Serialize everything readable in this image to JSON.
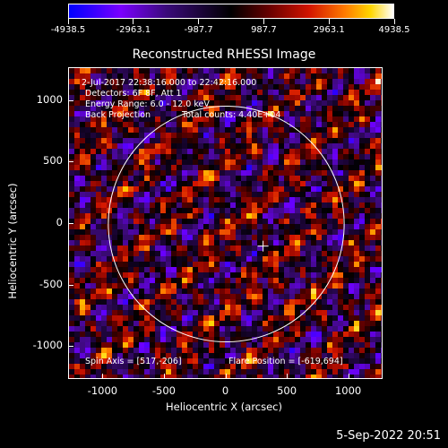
{
  "window": {
    "plot_title": "Reconstructed RHESSI Image",
    "footer_date": "5-Sep-2022 20:51"
  },
  "colorbar": {
    "labels": [
      "-4938.5",
      "-2963.1",
      "-987.7",
      "987.7",
      "2963.1",
      "4938.5"
    ],
    "colors": [
      "#0000ff",
      "#7a00ff",
      "#000000",
      "#d21400",
      "#ff7a00",
      "#ffd600",
      "#ffffff"
    ]
  },
  "annotations": {
    "time_range": "2-Jul-2017 22:38:16.000 to 22:42:16.000",
    "detectors": "Detectors: 6F 8F, Att 1",
    "energy_range": "Energy Range: 6.0 - 12.0 keV",
    "method": "Back Projection",
    "total_counts": "Total counts: 4.40E+04",
    "spin_axis": "Spin Axis = [517,-206]",
    "flare_position": "Flare Position = [-619,694]"
  },
  "axes": {
    "xlabel": "Heliocentric X (arcsec)",
    "ylabel": "Heliocentric Y (arcsec)",
    "xticks": [
      "-1000",
      "-500",
      "0",
      "500",
      "1000"
    ],
    "yticks": [
      "1000",
      "500",
      "0",
      "-500",
      "-1000"
    ]
  },
  "chart_data": {
    "type": "heatmap",
    "title": "Reconstructed RHESSI Image",
    "xlabel": "Heliocentric X (arcsec)",
    "ylabel": "Heliocentric Y (arcsec)",
    "xlim": [
      -1280,
      1280
    ],
    "ylim": [
      -1270,
      1270
    ],
    "value_range": [
      -4938.5,
      4938.5
    ],
    "solar_disk_radius": 960,
    "marker_position": [
      300,
      -180
    ]
  }
}
